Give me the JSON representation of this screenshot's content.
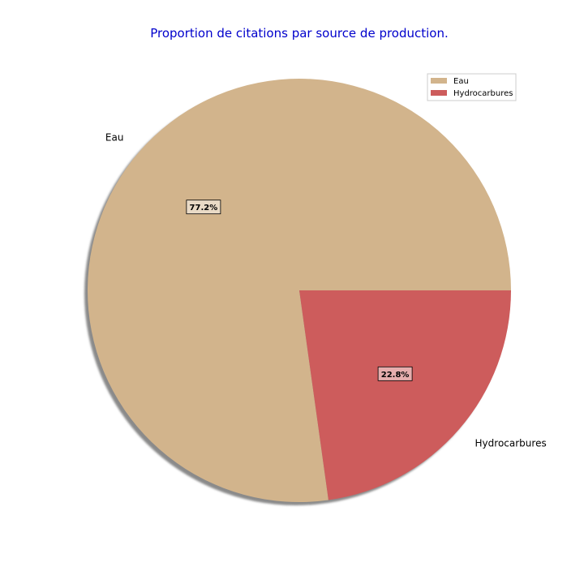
{
  "chart_data": {
    "type": "pie",
    "title": "Proportion de citations par source de production.",
    "title_color": "#0000cc",
    "categories": [
      "Eau",
      "Hydrocarbures"
    ],
    "values": [
      77.2,
      22.8
    ],
    "percent_labels": [
      "77.2%",
      "22.8%"
    ],
    "colors": [
      "#d2b48c",
      "#cd5c5c"
    ],
    "shadow": true,
    "legend": {
      "placement": "top-right",
      "entries": [
        "Eau",
        "Hydrocarbures"
      ]
    }
  }
}
